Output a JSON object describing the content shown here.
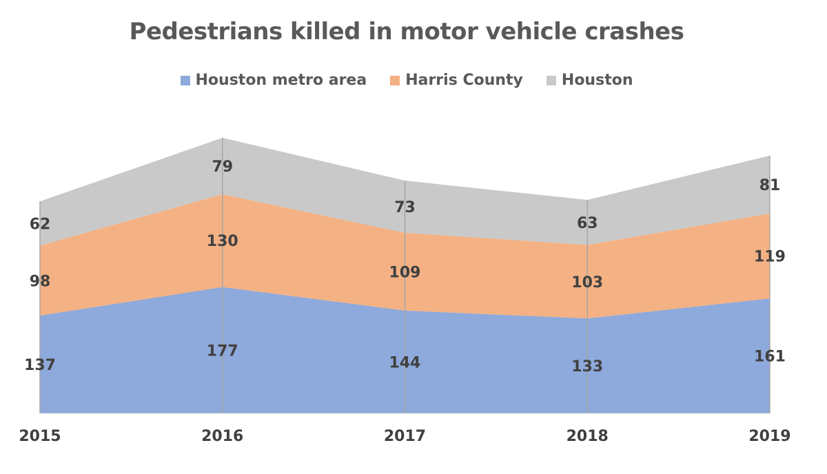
{
  "chart_data": {
    "type": "area",
    "stacked": true,
    "title": "Pedestrians killed in motor vehicle crashes",
    "categories": [
      "2015",
      "2016",
      "2017",
      "2018",
      "2019"
    ],
    "series": [
      {
        "name": "Houston metro area",
        "values": [
          137,
          177,
          144,
          133,
          161
        ],
        "color": "#8EA9DB"
      },
      {
        "name": "Harris County",
        "values": [
          98,
          130,
          109,
          103,
          119
        ],
        "color": "#F4B183"
      },
      {
        "name": "Houston",
        "values": [
          62,
          79,
          73,
          63,
          81
        ],
        "color": "#C9C9C9"
      }
    ],
    "ylim": [
      0,
      386
    ],
    "legend_position": "top",
    "grid": false,
    "data_labels": true
  }
}
